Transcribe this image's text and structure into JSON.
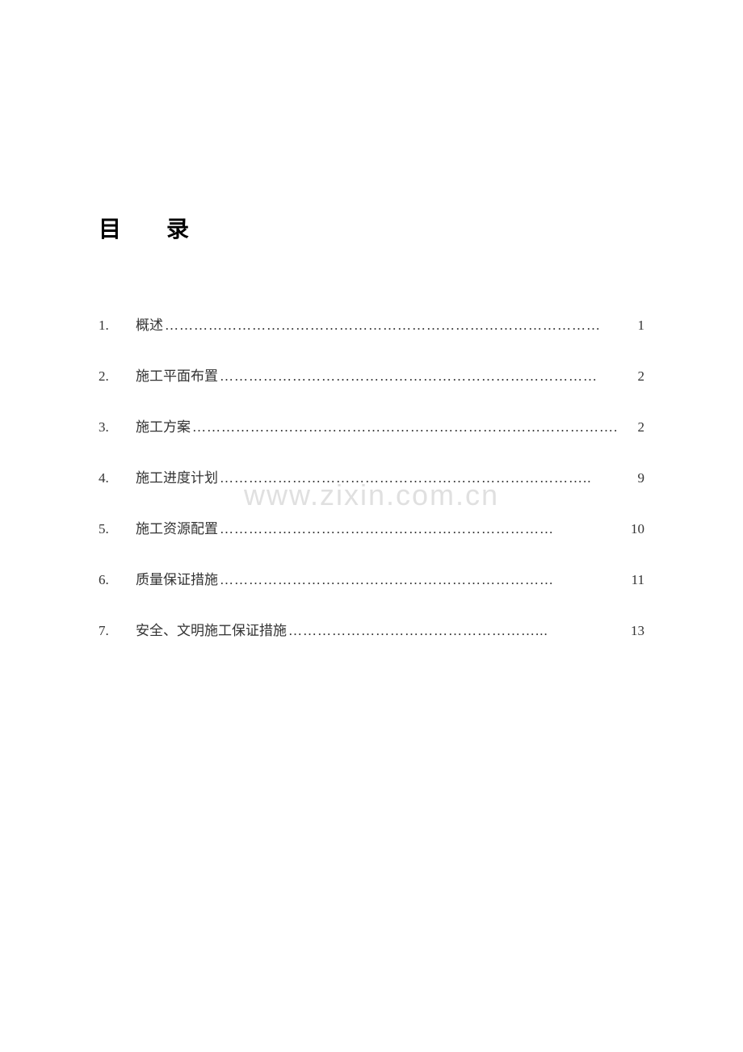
{
  "document": {
    "title": "目录",
    "watermark": "www.zixin.com.cn",
    "background_color": "#ffffff",
    "text_color": "#333333",
    "title_color": "#000000",
    "watermark_color": "#e0e0e0",
    "title_fontsize": 28,
    "body_fontsize": 17,
    "watermark_fontsize": 36,
    "toc": [
      {
        "number": "1.",
        "title": "概述",
        "page": "1",
        "spacer": " "
      },
      {
        "number": "2.",
        "title": "施工平面布置",
        "page": "2",
        "spacer": ""
      },
      {
        "number": "3.",
        "title": "施工方案",
        "page": "2",
        "spacer": "  "
      },
      {
        "number": "4.",
        "title": "施工进度计划",
        "page": "9",
        "spacer": "  "
      },
      {
        "number": "5.",
        "title": "施工资源配置",
        "page": "10",
        "spacer": "  "
      },
      {
        "number": "6.",
        "title": "质量保证措施",
        "page": "11",
        "spacer": "  "
      },
      {
        "number": "7.",
        "title": "安全、文明施工保证措施",
        "page": "13",
        "spacer": "  "
      }
    ]
  }
}
